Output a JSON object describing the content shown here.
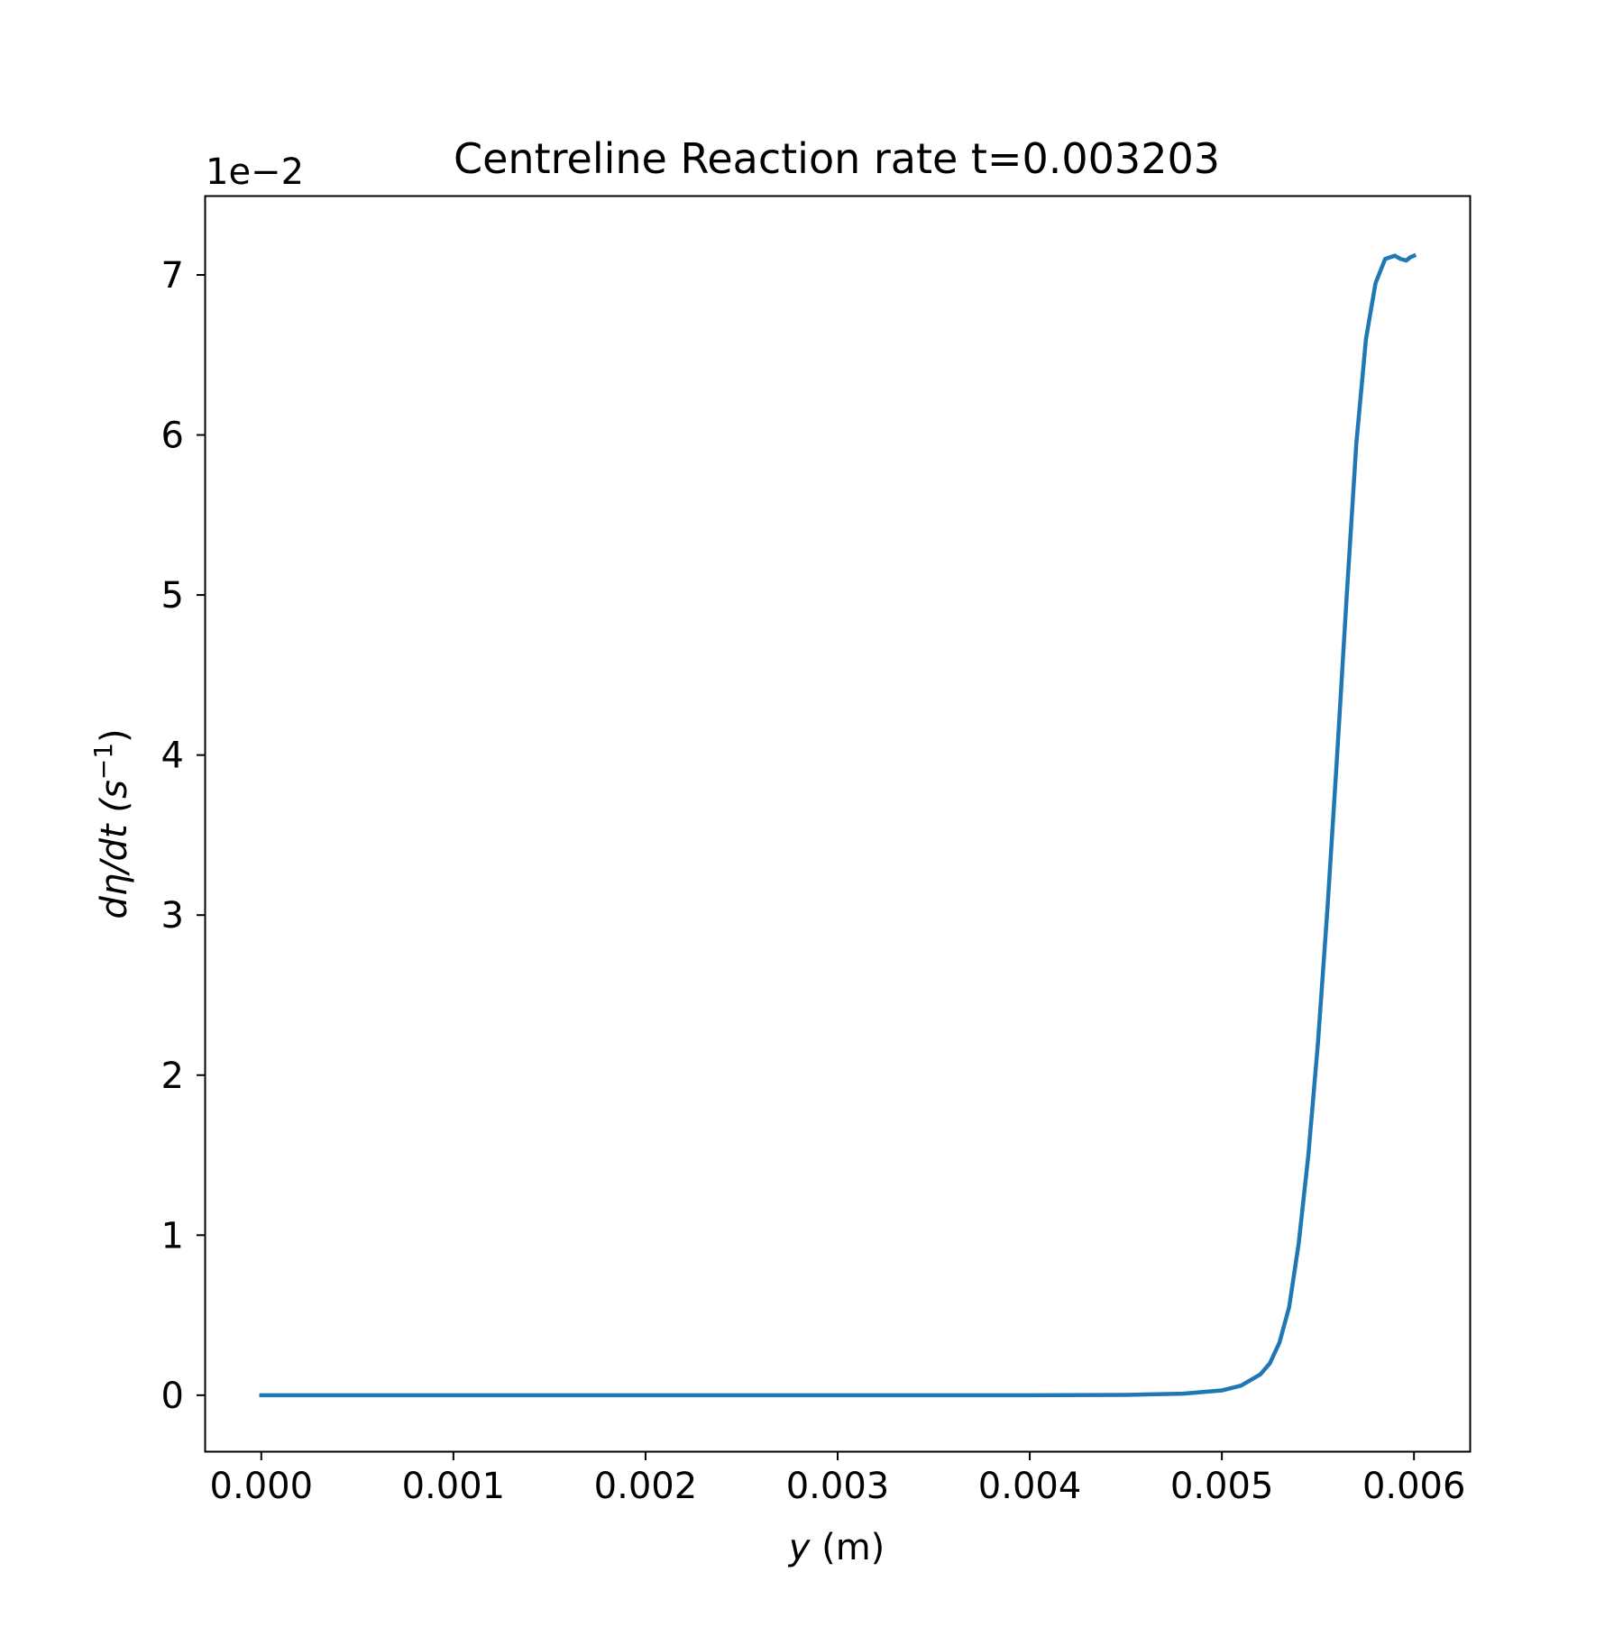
{
  "chart_data": {
    "type": "line",
    "title": "Centreline Reaction rate t=0.003203",
    "xlabel": "y (m)",
    "xlabel_var": "y",
    "xlabel_unit": " (m)",
    "ylabel": "dη/dt (s⁻¹)",
    "ylabel_parts": {
      "main": "dη/dt (s",
      "sup": "−1",
      "close": ")"
    },
    "y_offset_label": "1e−2",
    "y_scale": 0.01,
    "xlim": [
      -0.00029,
      0.00629
    ],
    "ylim": [
      -0.35,
      7.49
    ],
    "xticks": [
      0.0,
      0.001,
      0.002,
      0.003,
      0.004,
      0.005,
      0.006
    ],
    "xtick_labels": [
      "0.000",
      "0.001",
      "0.002",
      "0.003",
      "0.004",
      "0.005",
      "0.006"
    ],
    "yticks": [
      0,
      1,
      2,
      3,
      4,
      5,
      6,
      7
    ],
    "ytick_labels": [
      "0",
      "1",
      "2",
      "3",
      "4",
      "5",
      "6",
      "7"
    ],
    "grid": false,
    "series": [
      {
        "color": "#1f77b4",
        "x": [
          0.0,
          0.001,
          0.002,
          0.003,
          0.004,
          0.0045,
          0.0048,
          0.005,
          0.0051,
          0.0052,
          0.00525,
          0.0053,
          0.00535,
          0.0054,
          0.00545,
          0.0055,
          0.00555,
          0.0056,
          0.00565,
          0.0057,
          0.00575,
          0.0058,
          0.00585,
          0.0059,
          0.00593,
          0.00596,
          0.00598,
          0.006
        ],
        "y": [
          0.0,
          0.0,
          0.0,
          0.0,
          0.0,
          0.002,
          0.01,
          0.03,
          0.06,
          0.13,
          0.2,
          0.33,
          0.55,
          0.95,
          1.5,
          2.2,
          3.05,
          4.0,
          5.0,
          5.95,
          6.6,
          6.95,
          7.1,
          7.12,
          7.1,
          7.09,
          7.11,
          7.12
        ]
      }
    ]
  }
}
